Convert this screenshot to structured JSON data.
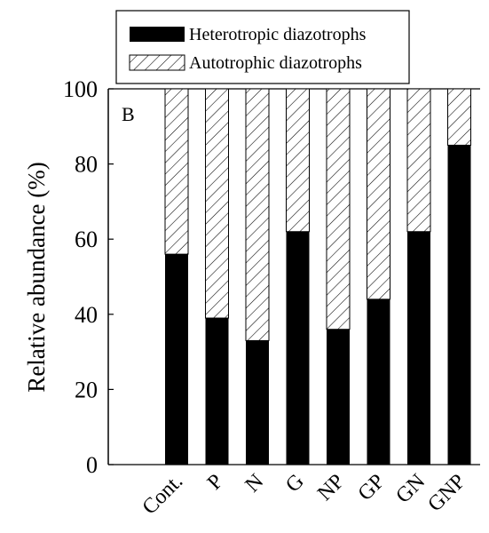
{
  "chart_data": {
    "type": "bar",
    "stacked": true,
    "panel_label": "B",
    "ylabel": "Relative abundance (%)",
    "xlabel": "",
    "ylim": [
      0,
      100
    ],
    "yticks": [
      0,
      20,
      40,
      60,
      80,
      100
    ],
    "categories": [
      "Cont.",
      "P",
      "N",
      "G",
      "NP",
      "GP",
      "GN",
      "GNP"
    ],
    "series": [
      {
        "name": "Heterotropic diazotrophs",
        "fill": "solid",
        "color": "#000000",
        "values": [
          56,
          39,
          33,
          62,
          36,
          44,
          62,
          85
        ]
      },
      {
        "name": "Autotrophic diazotrophs",
        "fill": "hatched",
        "color": "#ffffff",
        "values": [
          44,
          61,
          67,
          38,
          64,
          56,
          38,
          15
        ]
      }
    ],
    "legend_position": "top",
    "grid": false
  }
}
